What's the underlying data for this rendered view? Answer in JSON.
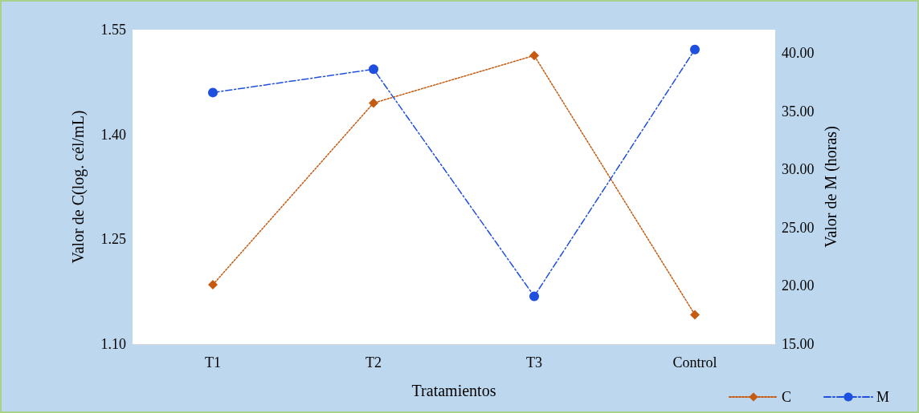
{
  "chart_data": {
    "type": "line",
    "xlabel": "Tratamientos",
    "ylabel": "Valor de C(log. cél/mL)",
    "y2label": "Valor de M (horas)",
    "categories": [
      "T1",
      "T2",
      "T3",
      "Control"
    ],
    "series": [
      {
        "name": "C",
        "color": "#c55a11",
        "values": [
          1.185,
          1.445,
          1.513,
          1.142
        ],
        "marker": "diamond",
        "line_style": "dotted"
      },
      {
        "name": "M",
        "color": "#1f4fe0",
        "values": [
          36.6,
          38.6,
          19.1,
          40.3
        ],
        "axis": "y2",
        "marker": "circle",
        "line_style": "dashed"
      }
    ],
    "ylim": [
      1.1,
      1.55
    ],
    "yticks": [
      {
        "value": 1.1,
        "label": "1.10"
      },
      {
        "value": 1.25,
        "label": "1.25"
      },
      {
        "value": 1.4,
        "label": "1.40"
      },
      {
        "value": 1.55,
        "label": "1.55"
      }
    ],
    "y2lim": [
      15,
      42
    ],
    "y2ticks": [
      {
        "value": 15,
        "label": "15.00"
      },
      {
        "value": 20,
        "label": "20.00"
      },
      {
        "value": 25,
        "label": "25.00"
      },
      {
        "value": 30,
        "label": "30.00"
      },
      {
        "value": 35,
        "label": "35.00"
      },
      {
        "value": 40,
        "label": "40.00"
      }
    ],
    "grid": false,
    "legend": "bottom right"
  }
}
